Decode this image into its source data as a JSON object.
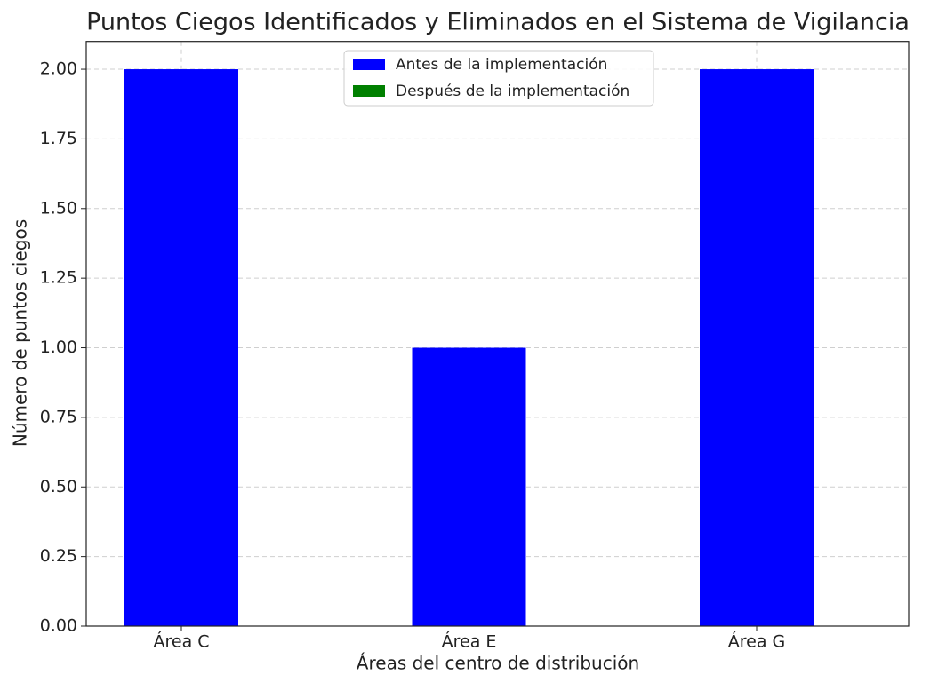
{
  "chart_data": {
    "type": "bar",
    "title": "Puntos Ciegos Identificados y Eliminados en el Sistema de Vigilancia",
    "xlabel": "Áreas del centro de distribución",
    "ylabel": "Número de puntos ciegos",
    "categories": [
      "Área C",
      "Área E",
      "Área G"
    ],
    "series": [
      {
        "name": "Antes de la implementación",
        "color": "#0000ff",
        "values": [
          2,
          1,
          2
        ]
      },
      {
        "name": "Después de la implementación",
        "color": "#008000",
        "values": [
          0,
          0,
          0
        ]
      }
    ],
    "ylim": [
      0,
      2.1
    ],
    "yticks": [
      {
        "value": 0,
        "label": "0.00"
      },
      {
        "value": 0.25,
        "label": "0.25"
      },
      {
        "value": 0.5,
        "label": "0.50"
      },
      {
        "value": 0.75,
        "label": "0.75"
      },
      {
        "value": 1,
        "label": "1.00"
      },
      {
        "value": 1.25,
        "label": "1.25"
      },
      {
        "value": 1.5,
        "label": "1.50"
      },
      {
        "value": 1.75,
        "label": "1.75"
      },
      {
        "value": 2,
        "label": "2.00"
      }
    ],
    "grid": true,
    "legend": "upper center"
  }
}
